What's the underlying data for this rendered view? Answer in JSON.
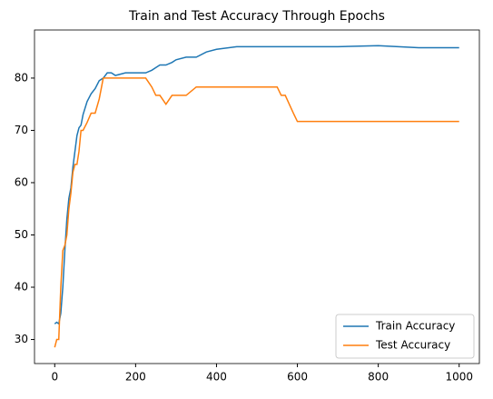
{
  "chart_data": {
    "type": "line",
    "title": "Train and Test Accuracy Through Epochs",
    "x": [
      0,
      5,
      10,
      15,
      20,
      25,
      30,
      35,
      40,
      45,
      50,
      55,
      60,
      65,
      70,
      80,
      90,
      100,
      110,
      120,
      130,
      140,
      150,
      175,
      200,
      225,
      240,
      250,
      260,
      275,
      290,
      300,
      325,
      350,
      375,
      400,
      450,
      500,
      550,
      560,
      570,
      580,
      590,
      600,
      650,
      700,
      800,
      900,
      1000
    ],
    "series": [
      {
        "name": "Train Accuracy",
        "color": "#1f77b4",
        "values": [
          33,
          33.3,
          33,
          35,
          40,
          47,
          53,
          57,
          59,
          63,
          66,
          69,
          70.5,
          71,
          73,
          75.5,
          77,
          78,
          79.5,
          80,
          81,
          81,
          80.5,
          81,
          81,
          81,
          81.5,
          82,
          82.5,
          82.5,
          83,
          83.5,
          84,
          84,
          85,
          85.5,
          86,
          86,
          86,
          86,
          86,
          86,
          86,
          86,
          86,
          86,
          86.2,
          85.8,
          85.8
        ]
      },
      {
        "name": "Test Accuracy",
        "color": "#ff7f0e",
        "values": [
          28.5,
          30,
          30,
          40,
          47,
          48,
          50,
          55,
          58,
          62,
          63.5,
          63.5,
          66,
          70,
          70,
          71.5,
          73.3,
          73.3,
          76,
          80,
          80,
          80,
          80,
          80,
          80,
          80,
          78.3,
          76.7,
          76.7,
          75,
          76.7,
          76.7,
          76.7,
          78.3,
          78.3,
          78.3,
          78.3,
          78.3,
          78.3,
          76.7,
          76.7,
          75,
          73.3,
          71.7,
          71.7,
          71.7,
          71.7,
          71.7,
          71.7
        ]
      }
    ],
    "xlim": [
      -50,
      1050
    ],
    "xticks": [
      0,
      200,
      400,
      600,
      800,
      1000
    ],
    "ylim": [
      25.4,
      89.2
    ],
    "yticks": [
      30,
      40,
      50,
      60,
      70,
      80
    ],
    "legend": "lower right"
  }
}
